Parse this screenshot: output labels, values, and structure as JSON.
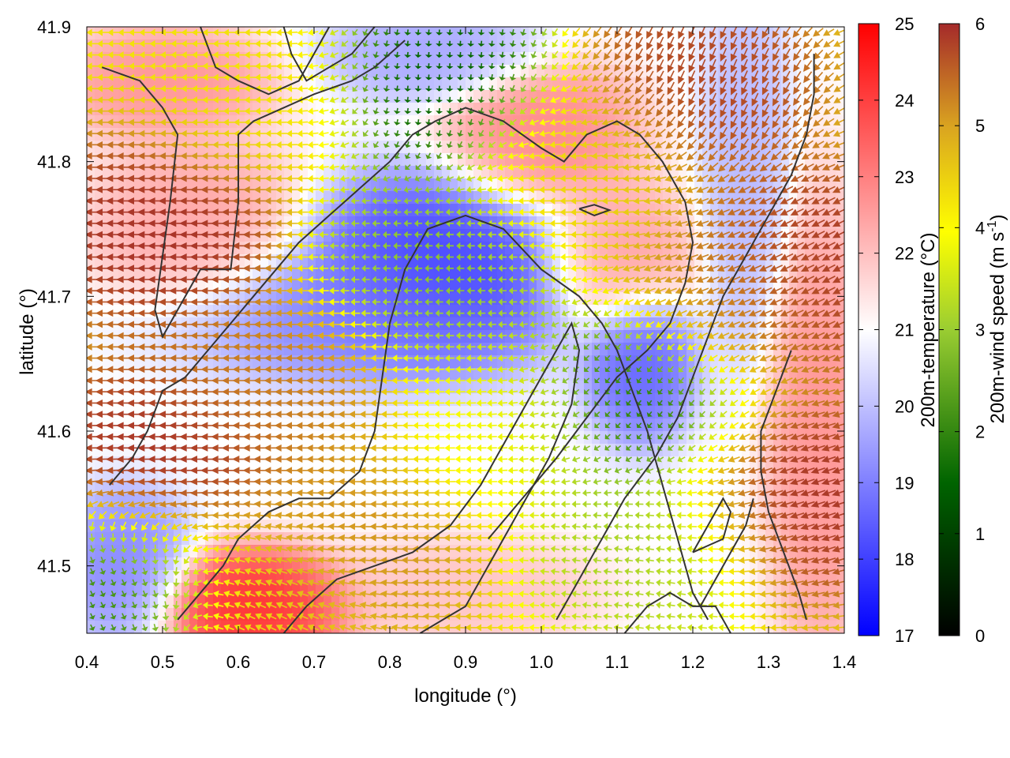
{
  "chart_data": {
    "type": "heatmap",
    "subtype": "temperature field with wind vectors and terrain contours",
    "xlabel": "longitude (°)",
    "ylabel": "latitude (°)",
    "xlim": [
      0.4,
      1.4
    ],
    "ylim": [
      41.45,
      41.9
    ],
    "x_ticks": [
      0.4,
      0.5,
      0.6,
      0.7,
      0.8,
      0.9,
      1.0,
      1.1,
      1.2,
      1.3,
      1.4
    ],
    "y_ticks": [
      41.5,
      41.6,
      41.7,
      41.8,
      41.9
    ],
    "x_tick_labels": [
      "0.4",
      "0.5",
      "0.6",
      "0.7",
      "0.8",
      "0.9",
      "1.0",
      "1.1",
      "1.2",
      "1.3",
      "1.4"
    ],
    "y_tick_labels": [
      "41.5",
      "41.6",
      "41.7",
      "41.8",
      "41.9"
    ],
    "grid": false,
    "temperature_colorbar": {
      "label": "200m-temperature (°C)",
      "range": [
        17,
        25
      ],
      "ticks": [
        17,
        18,
        19,
        20,
        21,
        22,
        23,
        24,
        25
      ],
      "tick_labels": [
        "17",
        "18",
        "19",
        "20",
        "21",
        "22",
        "23",
        "24",
        "25"
      ],
      "colors": [
        "#0000ff",
        "#ffffff",
        "#ff0000"
      ]
    },
    "wind_colorbar": {
      "label_main": "200m-wind speed (m s",
      "label_sup": "-1",
      "label_end": ")",
      "range": [
        0,
        6
      ],
      "ticks": [
        0,
        1,
        2,
        3,
        4,
        5,
        6
      ],
      "tick_labels": [
        "0",
        "1",
        "2",
        "3",
        "4",
        "5",
        "6"
      ],
      "colors": [
        "#000000",
        "#006400",
        "#ffff00",
        "#daa520",
        "#a52a2a"
      ]
    },
    "temperature_features": [
      {
        "lon": 0.86,
        "lat": 41.72,
        "temp": 17.8,
        "radius_lon": 0.13,
        "radius_lat": 0.05
      },
      {
        "lon": 0.72,
        "lat": 41.69,
        "temp": 19.0,
        "radius_lon": 0.16,
        "radius_lat": 0.035
      },
      {
        "lon": 1.13,
        "lat": 41.65,
        "temp": 18.4,
        "radius_lon": 0.05,
        "radius_lat": 0.04
      },
      {
        "lon": 0.62,
        "lat": 41.47,
        "temp": 24.5,
        "radius_lon": 0.09,
        "radius_lat": 0.03
      },
      {
        "lon": 0.55,
        "lat": 41.75,
        "temp": 22.5,
        "radius_lon": 0.1,
        "radius_lat": 0.05
      },
      {
        "lon": 0.5,
        "lat": 41.86,
        "temp": 22.8,
        "radius_lon": 0.1,
        "radius_lat": 0.03
      },
      {
        "lon": 1.0,
        "lat": 41.82,
        "temp": 23.0,
        "radius_lon": 0.09,
        "radius_lat": 0.04
      },
      {
        "lon": 1.1,
        "lat": 41.73,
        "temp": 22.6,
        "radius_lon": 0.07,
        "radius_lat": 0.04
      },
      {
        "lon": 0.86,
        "lat": 41.88,
        "temp": 19.5,
        "radius_lon": 0.1,
        "radius_lat": 0.025
      },
      {
        "lon": 1.27,
        "lat": 41.8,
        "temp": 19.8,
        "radius_lon": 0.04,
        "radius_lat": 0.1
      },
      {
        "lon": 1.37,
        "lat": 41.6,
        "temp": 22.8,
        "radius_lon": 0.05,
        "radius_lat": 0.12
      },
      {
        "lon": 0.45,
        "lat": 41.5,
        "temp": 19.0,
        "radius_lon": 0.06,
        "radius_lat": 0.04
      },
      {
        "lon": 0.9,
        "lat": 41.48,
        "temp": 22.0,
        "radius_lon": 0.12,
        "radius_lat": 0.03
      }
    ],
    "wind_features": [
      {
        "lon": 0.5,
        "lat": 41.75,
        "speed": 6.0,
        "dir_deg": 180
      },
      {
        "lon": 0.5,
        "lat": 41.58,
        "speed": 6.0,
        "dir_deg": 180
      },
      {
        "lon": 0.65,
        "lat": 41.64,
        "speed": 5.2,
        "dir_deg": 180
      },
      {
        "lon": 0.85,
        "lat": 41.72,
        "speed": 2.2,
        "dir_deg": 180
      },
      {
        "lon": 0.95,
        "lat": 41.6,
        "speed": 3.5,
        "dir_deg": 180
      },
      {
        "lon": 1.12,
        "lat": 41.62,
        "speed": 1.2,
        "dir_deg": 240
      },
      {
        "lon": 0.87,
        "lat": 41.86,
        "speed": 1.0,
        "dir_deg": 270
      },
      {
        "lon": 1.05,
        "lat": 41.8,
        "speed": 4.2,
        "dir_deg": 180
      },
      {
        "lon": 1.25,
        "lat": 41.7,
        "speed": 5.0,
        "dir_deg": 200
      },
      {
        "lon": 1.35,
        "lat": 41.72,
        "speed": 6.0,
        "dir_deg": 210
      },
      {
        "lon": 1.32,
        "lat": 41.55,
        "speed": 6.0,
        "dir_deg": 200
      },
      {
        "lon": 1.15,
        "lat": 41.52,
        "speed": 2.5,
        "dir_deg": 170
      },
      {
        "lon": 0.45,
        "lat": 41.48,
        "speed": 1.5,
        "dir_deg": 300
      },
      {
        "lon": 0.63,
        "lat": 41.47,
        "speed": 4.3,
        "dir_deg": 150
      },
      {
        "lon": 0.75,
        "lat": 41.52,
        "speed": 5.0,
        "dir_deg": 180
      },
      {
        "lon": 0.62,
        "lat": 41.85,
        "speed": 4.0,
        "dir_deg": 180
      },
      {
        "lon": 1.2,
        "lat": 41.86,
        "speed": 5.8,
        "dir_deg": 250
      }
    ],
    "contours": [
      [
        [
          0.42,
          41.87
        ],
        [
          0.47,
          41.86
        ],
        [
          0.5,
          41.84
        ],
        [
          0.52,
          41.82
        ],
        [
          0.51,
          41.77
        ],
        [
          0.5,
          41.73
        ],
        [
          0.49,
          41.69
        ],
        [
          0.5,
          41.67
        ],
        [
          0.52,
          41.69
        ],
        [
          0.55,
          41.72
        ],
        [
          0.57,
          41.72
        ],
        [
          0.59,
          41.72
        ],
        [
          0.6,
          41.77
        ],
        [
          0.6,
          41.82
        ],
        [
          0.62,
          41.83
        ],
        [
          0.66,
          41.84
        ],
        [
          0.7,
          41.85
        ],
        [
          0.75,
          41.86
        ],
        [
          0.78,
          41.87
        ],
        [
          0.82,
          41.89
        ]
      ],
      [
        [
          0.55,
          41.9
        ],
        [
          0.57,
          41.87
        ],
        [
          0.6,
          41.86
        ],
        [
          0.64,
          41.85
        ],
        [
          0.68,
          41.86
        ],
        [
          0.7,
          41.88
        ],
        [
          0.72,
          41.9
        ]
      ],
      [
        [
          0.43,
          41.56
        ],
        [
          0.46,
          41.58
        ],
        [
          0.48,
          41.6
        ],
        [
          0.5,
          41.63
        ],
        [
          0.53,
          41.64
        ],
        [
          0.56,
          41.66
        ],
        [
          0.59,
          41.68
        ],
        [
          0.62,
          41.7
        ],
        [
          0.65,
          41.72
        ],
        [
          0.68,
          41.74
        ],
        [
          0.72,
          41.76
        ],
        [
          0.76,
          41.78
        ],
        [
          0.8,
          41.8
        ],
        [
          0.83,
          41.82
        ],
        [
          0.86,
          41.83
        ],
        [
          0.9,
          41.84
        ],
        [
          0.95,
          41.83
        ],
        [
          1.0,
          41.81
        ],
        [
          1.03,
          41.8
        ],
        [
          1.06,
          41.82
        ],
        [
          1.1,
          41.83
        ],
        [
          1.13,
          41.82
        ],
        [
          1.16,
          41.8
        ],
        [
          1.19,
          41.77
        ],
        [
          1.2,
          41.74
        ],
        [
          1.19,
          41.71
        ],
        [
          1.17,
          41.68
        ],
        [
          1.14,
          41.66
        ],
        [
          1.1,
          41.64
        ],
        [
          1.06,
          41.61
        ],
        [
          1.02,
          41.58
        ],
        [
          0.99,
          41.56
        ],
        [
          0.96,
          41.54
        ],
        [
          0.93,
          41.52
        ]
      ],
      [
        [
          0.52,
          41.46
        ],
        [
          0.55,
          41.48
        ],
        [
          0.58,
          41.5
        ],
        [
          0.6,
          41.52
        ],
        [
          0.64,
          41.54
        ],
        [
          0.68,
          41.55
        ],
        [
          0.72,
          41.55
        ],
        [
          0.76,
          41.57
        ],
        [
          0.78,
          41.6
        ],
        [
          0.79,
          41.64
        ],
        [
          0.8,
          41.68
        ],
        [
          0.82,
          41.72
        ],
        [
          0.85,
          41.75
        ],
        [
          0.9,
          41.76
        ],
        [
          0.95,
          41.75
        ],
        [
          1.0,
          41.72
        ],
        [
          1.05,
          41.7
        ],
        [
          1.08,
          41.68
        ],
        [
          1.1,
          41.66
        ],
        [
          1.12,
          41.63
        ],
        [
          1.14,
          41.6
        ],
        [
          1.16,
          41.56
        ],
        [
          1.18,
          41.52
        ],
        [
          1.2,
          41.48
        ],
        [
          1.22,
          41.46
        ]
      ],
      [
        [
          0.66,
          41.45
        ],
        [
          0.69,
          41.47
        ],
        [
          0.73,
          41.49
        ],
        [
          0.78,
          41.5
        ],
        [
          0.83,
          41.51
        ],
        [
          0.88,
          41.53
        ],
        [
          0.92,
          41.56
        ],
        [
          0.96,
          41.6
        ],
        [
          0.99,
          41.63
        ],
        [
          1.02,
          41.66
        ],
        [
          1.04,
          41.68
        ],
        [
          1.05,
          41.66
        ],
        [
          1.04,
          41.62
        ],
        [
          1.01,
          41.58
        ],
        [
          0.98,
          41.55
        ],
        [
          0.95,
          41.52
        ],
        [
          0.92,
          41.49
        ],
        [
          0.9,
          41.47
        ],
        [
          0.87,
          41.46
        ],
        [
          0.84,
          41.45
        ]
      ],
      [
        [
          1.02,
          41.46
        ],
        [
          1.05,
          41.49
        ],
        [
          1.08,
          41.52
        ],
        [
          1.11,
          41.55
        ],
        [
          1.15,
          41.58
        ],
        [
          1.18,
          41.61
        ],
        [
          1.2,
          41.64
        ],
        [
          1.22,
          41.67
        ],
        [
          1.24,
          41.7
        ],
        [
          1.27,
          41.73
        ],
        [
          1.3,
          41.76
        ],
        [
          1.33,
          41.79
        ],
        [
          1.35,
          41.82
        ],
        [
          1.36,
          41.85
        ],
        [
          1.36,
          41.88
        ]
      ],
      [
        [
          1.33,
          41.66
        ],
        [
          1.31,
          41.63
        ],
        [
          1.29,
          41.6
        ],
        [
          1.29,
          41.57
        ],
        [
          1.3,
          41.54
        ],
        [
          1.32,
          41.51
        ],
        [
          1.34,
          41.48
        ],
        [
          1.35,
          41.46
        ]
      ],
      [
        [
          1.11,
          41.45
        ],
        [
          1.14,
          41.47
        ],
        [
          1.17,
          41.48
        ],
        [
          1.2,
          41.47
        ],
        [
          1.23,
          41.47
        ],
        [
          1.25,
          41.45
        ]
      ],
      [
        [
          1.2,
          41.51
        ],
        [
          1.24,
          41.52
        ],
        [
          1.25,
          41.54
        ],
        [
          1.24,
          41.55
        ],
        [
          1.22,
          41.53
        ],
        [
          1.2,
          41.51
        ]
      ],
      [
        [
          1.05,
          41.765
        ],
        [
          1.07,
          41.768
        ],
        [
          1.09,
          41.764
        ],
        [
          1.07,
          41.76
        ],
        [
          1.05,
          41.765
        ]
      ],
      [
        [
          0.66,
          41.9
        ],
        [
          0.67,
          41.88
        ],
        [
          0.69,
          41.86
        ],
        [
          0.72,
          41.87
        ],
        [
          0.75,
          41.88
        ],
        [
          0.78,
          41.9
        ]
      ],
      [
        [
          1.21,
          41.47
        ],
        [
          1.23,
          41.49
        ],
        [
          1.25,
          41.51
        ],
        [
          1.27,
          41.53
        ],
        [
          1.28,
          41.55
        ]
      ]
    ]
  }
}
